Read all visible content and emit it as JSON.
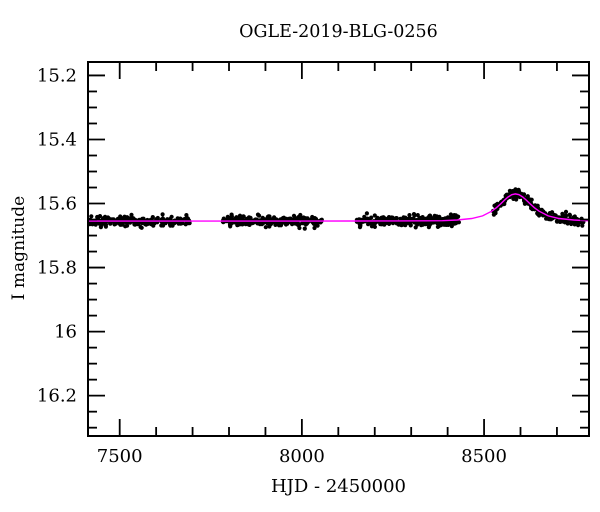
{
  "figure": {
    "background": "#ffffff",
    "frame_color": "#000000"
  },
  "chart_data": {
    "type": "scatter",
    "title": "OGLE-2019-BLG-0256",
    "xlabel": "HJD - 2450000",
    "ylabel": "I magnitude",
    "xlim": [
      7413,
      8788
    ],
    "ylim_mag": [
      15.158,
      16.326
    ],
    "y_inverted": true,
    "grid": false,
    "legend": null,
    "x_major_ticks": [
      {
        "value": 7500,
        "label": "7500"
      },
      {
        "value": 8000,
        "label": "8000"
      },
      {
        "value": 8500,
        "label": "8500"
      }
    ],
    "x_minor_step": 100,
    "y_major_ticks": [
      {
        "value": 15.2,
        "label": "15.2"
      },
      {
        "value": 15.4,
        "label": "15.4"
      },
      {
        "value": 15.6,
        "label": "15.6"
      },
      {
        "value": 15.8,
        "label": "15.8"
      },
      {
        "value": 16.0,
        "label": "16"
      },
      {
        "value": 16.2,
        "label": "16.2"
      }
    ],
    "y_minor_step": 0.05,
    "point_color": "#000000",
    "model_color": "#ff00ff",
    "baseline_mag": 15.655,
    "peak_mag": 15.57,
    "peak_time": 8586,
    "model_curve": [
      [
        7413,
        15.655
      ],
      [
        7700,
        15.655
      ],
      [
        8000,
        15.6549
      ],
      [
        8150,
        15.6545
      ],
      [
        8250,
        15.6542
      ],
      [
        8336,
        15.654
      ],
      [
        8386,
        15.6535
      ],
      [
        8426,
        15.6515
      ],
      [
        8466,
        15.6468
      ],
      [
        8496,
        15.6385
      ],
      [
        8521,
        15.624
      ],
      [
        8533.5,
        15.6134
      ],
      [
        8546,
        15.6007
      ],
      [
        8556,
        15.5894
      ],
      [
        8566,
        15.5796
      ],
      [
        8576,
        15.5723
      ],
      [
        8586,
        15.57
      ],
      [
        8596,
        15.5723
      ],
      [
        8606,
        15.5796
      ],
      [
        8616,
        15.5894
      ],
      [
        8626,
        15.6007
      ],
      [
        8638.5,
        15.6134
      ],
      [
        8651,
        15.624
      ],
      [
        8676,
        15.6385
      ],
      [
        8706,
        15.6468
      ],
      [
        8746,
        15.6515
      ],
      [
        8788,
        15.654
      ]
    ],
    "seasons": [
      {
        "t_start": 7415,
        "t_end": 7692,
        "n_points": 250
      },
      {
        "t_start": 7783,
        "t_end": 8056,
        "n_points": 260
      },
      {
        "t_start": 8150,
        "t_end": 8434,
        "n_points": 250
      },
      {
        "t_start": 8521,
        "t_end": 8774,
        "n_points": 230
      }
    ],
    "scatter_sigma_mag": 0.0075,
    "point_radius_px": 2.1,
    "random_seed": 20190256
  }
}
